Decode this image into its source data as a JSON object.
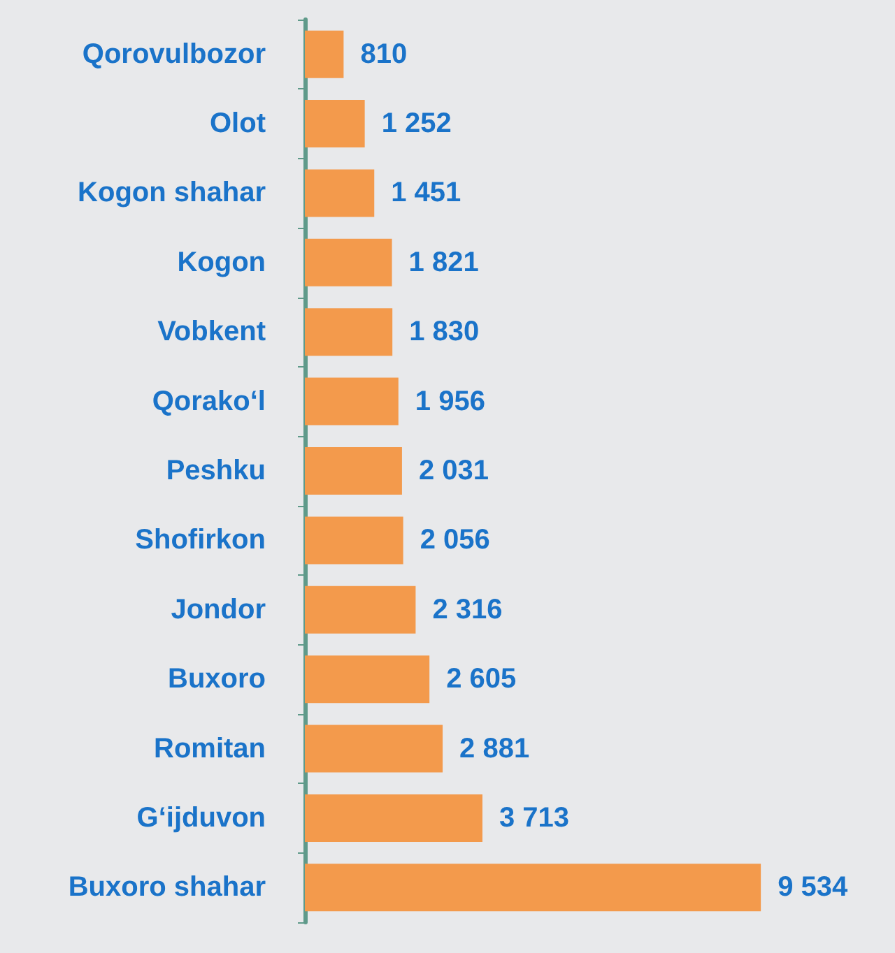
{
  "chart_data": {
    "type": "bar",
    "orientation": "horizontal",
    "categories": [
      "Qorovulbozor",
      "Olot",
      "Kogon shahar",
      "Kogon",
      "Vobkent",
      "Qorako‘l",
      "Peshku",
      "Shofirkon",
      "Jondor",
      "Buxoro",
      "Romitan",
      "G‘ijduvon",
      "Buxoro shahar"
    ],
    "values": [
      810,
      1252,
      1451,
      1821,
      1830,
      1956,
      2031,
      2056,
      2316,
      2605,
      2881,
      3713,
      9534
    ],
    "value_labels": [
      "810",
      "1 252",
      "1 451",
      "1 821",
      "1 830",
      "1 956",
      "2 031",
      "2 056",
      "2 316",
      "2 605",
      "2 881",
      "3 713",
      "9 534"
    ],
    "color": "#f39a4c",
    "tick_labels": "y"
  }
}
